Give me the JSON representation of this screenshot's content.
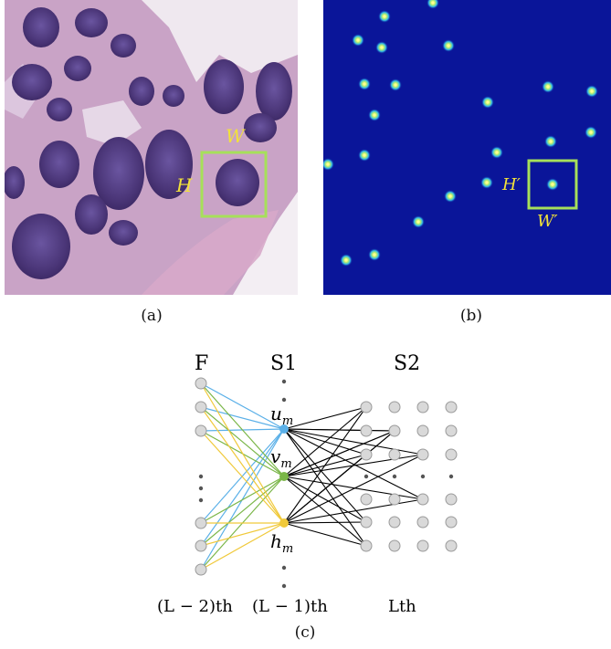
{
  "panel_a": {
    "caption": "(a)",
    "box_label_w": "W",
    "box_label_h": "H",
    "colors": {
      "tissue": "#c9a3c6",
      "nucleus": "#4a3577",
      "box": "#a6e05a",
      "label": "#f2e23a"
    }
  },
  "panel_b": {
    "caption": "(b)",
    "box_label_w": "W′",
    "box_label_h": "H′",
    "colors": {
      "background": "#0a1599",
      "dot_outer": "#2f7de8",
      "dot_inner": "#e8ff70",
      "box": "#a6e05a",
      "label": "#f2e23a"
    }
  },
  "panel_c": {
    "caption": "(c)",
    "column_titles": {
      "f": "F",
      "s1": "S1",
      "s2": "S2"
    },
    "node_labels": {
      "u": "u",
      "v": "v",
      "h": "h",
      "sub": "m"
    },
    "layer_labels": {
      "l2": "(L − 2)th",
      "l1": "(L − 1)th",
      "l": "Lth"
    },
    "colors": {
      "u_edges": "#5bb0e8",
      "v_edges": "#7ab648",
      "h_edges": "#f0c93a",
      "s2_edges": "#000000",
      "node_fill": "#d9d9d9",
      "node_stroke": "#9a9a9a"
    }
  }
}
